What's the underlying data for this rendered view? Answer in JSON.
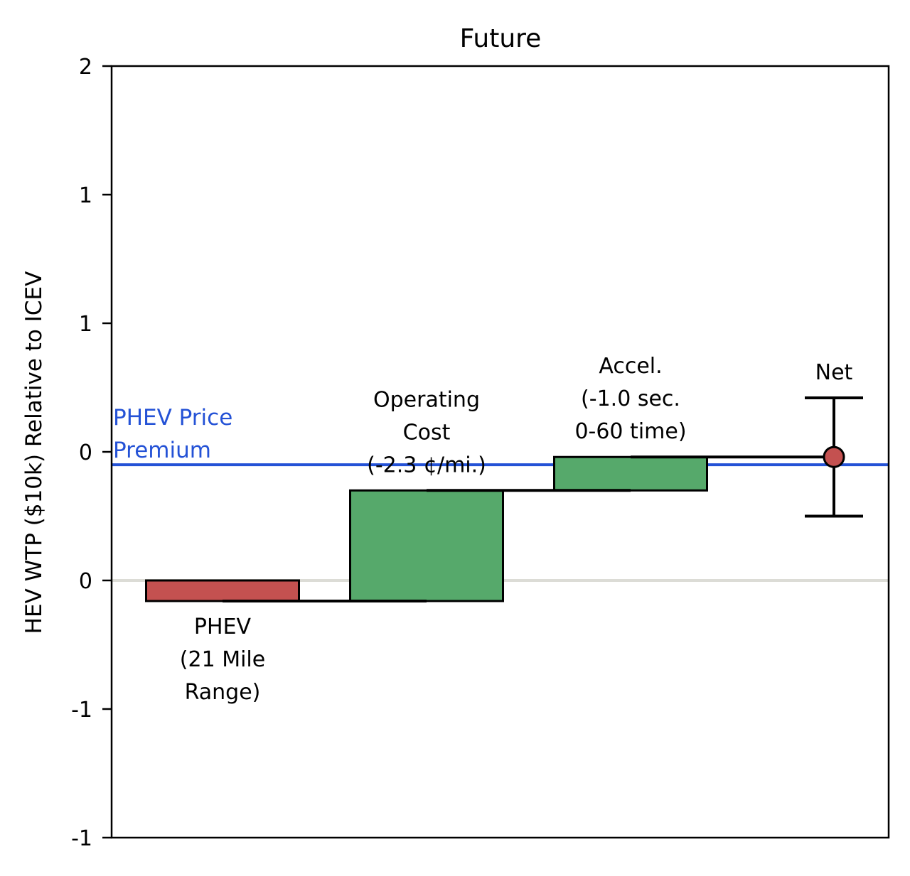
{
  "chart_data": {
    "type": "waterfall",
    "title": "Future",
    "xlabel": "",
    "ylabel": "HEV WTP ($10k) Relative to ICEV",
    "ylim": [
      -1.0,
      2.0
    ],
    "yticks": [
      -1.0,
      -0.5,
      0.0,
      0.5,
      1.0,
      1.5,
      2.0
    ],
    "ytick_labels": [
      "-1",
      "-1",
      "0",
      "0",
      "1",
      "1",
      "2"
    ],
    "grid": false,
    "legend": "none",
    "zero_line": {
      "value": 0.0,
      "color": "#dcdcd6"
    },
    "reference_line": {
      "value": 0.45,
      "label_lines": [
        "PHEV Price",
        "Premium"
      ],
      "color": "#2452d6"
    },
    "steps": [
      {
        "label_lines": [
          "PHEV",
          "(21 Mile",
          "Range)"
        ],
        "label_pos": "below",
        "start": 0.0,
        "end": -0.08,
        "color": "#c45150"
      },
      {
        "label_lines": [
          "Operating",
          "Cost",
          "(-2.3 ¢/mi.)"
        ],
        "label_pos": "above",
        "start": -0.08,
        "end": 0.35,
        "color": "#56a96b"
      },
      {
        "label_lines": [
          "Accel.",
          "(-1.0 sec.",
          "0-60 time)"
        ],
        "label_pos": "above",
        "start": 0.35,
        "end": 0.48,
        "color": "#56a96b"
      }
    ],
    "net": {
      "label": "Net",
      "value": 0.48,
      "error_low": 0.25,
      "error_high": 0.71,
      "color": "#c45150"
    }
  }
}
